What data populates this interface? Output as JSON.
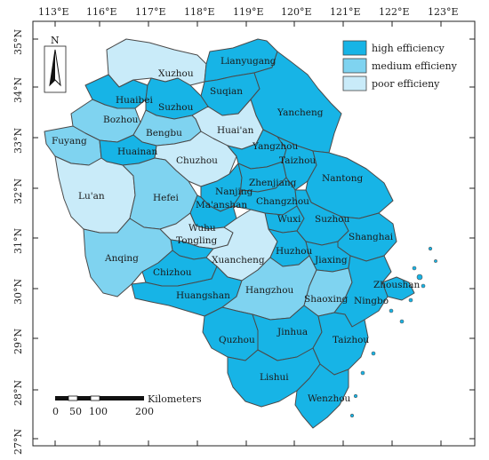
{
  "colors": {
    "high": "#17b4e6",
    "medium": "#7fd3f0",
    "poor": "#c9ebf9",
    "border": "#4a4a4a",
    "coast": "#777777"
  },
  "axes": {
    "lon_labels": [
      "113°E",
      "116°E",
      "117°E",
      "118°E",
      "119°E",
      "120°E",
      "121°E",
      "122°E",
      "123°E"
    ],
    "lat_labels": [
      "35°N",
      "34°N",
      "33°N",
      "32°N",
      "31°N",
      "30°N",
      "29°N",
      "28°N",
      "27°N"
    ]
  },
  "legend": {
    "items": [
      {
        "label": "high efficiency",
        "class": "high"
      },
      {
        "label": "medium efficieny",
        "class": "medium"
      },
      {
        "label": "poor efficieny",
        "class": "poor"
      }
    ]
  },
  "north_arrow": {
    "label": "N"
  },
  "scale_bar": {
    "unit": "Kilometers",
    "ticks": [
      "0",
      "50",
      "100",
      "200"
    ]
  },
  "cities": [
    {
      "name": "Xuzhou",
      "class": "poor"
    },
    {
      "name": "Lianyugang",
      "class": "high"
    },
    {
      "name": "Suqian",
      "class": "high"
    },
    {
      "name": "Huaibei",
      "class": "high"
    },
    {
      "name": "Suzhou",
      "class": "high"
    },
    {
      "name": "Bozhou",
      "class": "medium"
    },
    {
      "name": "Yancheng",
      "class": "high"
    },
    {
      "name": "Huai'an",
      "class": "poor"
    },
    {
      "name": "Bengbu",
      "class": "medium"
    },
    {
      "name": "Fuyang",
      "class": "medium"
    },
    {
      "name": "Huainan",
      "class": "high"
    },
    {
      "name": "Chuzhou",
      "class": "poor"
    },
    {
      "name": "Yangzhou",
      "class": "high"
    },
    {
      "name": "Taizhou",
      "class": "high"
    },
    {
      "name": "Nantong",
      "class": "high"
    },
    {
      "name": "Lu'an",
      "class": "poor"
    },
    {
      "name": "Hefei",
      "class": "medium"
    },
    {
      "name": "Nanjing",
      "class": "high"
    },
    {
      "name": "Zhenjiang",
      "class": "high"
    },
    {
      "name": "Changzhou",
      "class": "high"
    },
    {
      "name": "Ma'anshan",
      "class": "high"
    },
    {
      "name": "Wuxi",
      "class": "high"
    },
    {
      "name": "Suzhou",
      "class": "high"
    },
    {
      "name": "Wuhu",
      "class": "poor"
    },
    {
      "name": "Tongling",
      "class": "high"
    },
    {
      "name": "Shanghai",
      "class": "high"
    },
    {
      "name": "Anqing",
      "class": "medium"
    },
    {
      "name": "Xuancheng",
      "class": "poor"
    },
    {
      "name": "Huzhou",
      "class": "high"
    },
    {
      "name": "Jiaxing",
      "class": "high"
    },
    {
      "name": "Chizhou",
      "class": "high"
    },
    {
      "name": "Zhoushan",
      "class": "high"
    },
    {
      "name": "Huangshan",
      "class": "high"
    },
    {
      "name": "Hangzhou",
      "class": "medium"
    },
    {
      "name": "Shaoxing",
      "class": "medium"
    },
    {
      "name": "Ningbo",
      "class": "high"
    },
    {
      "name": "Quzhou",
      "class": "high"
    },
    {
      "name": "Jinhua",
      "class": "high"
    },
    {
      "name": "Taizhou",
      "class": "high"
    },
    {
      "name": "Lishui",
      "class": "high"
    },
    {
      "name": "Wenzhou",
      "class": "high"
    }
  ]
}
